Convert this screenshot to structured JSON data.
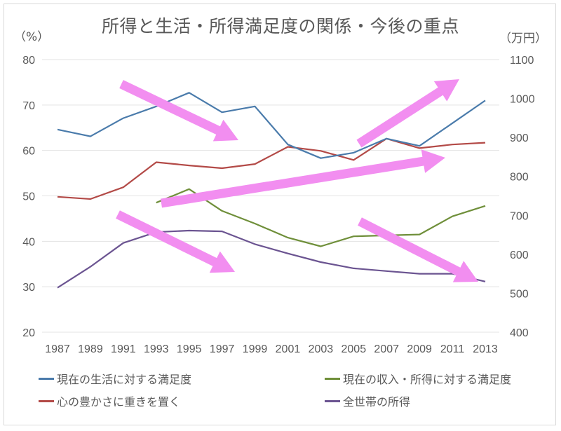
{
  "chart_data": {
    "type": "line",
    "title": "所得と生活・所得満足度の関係・今後の重点",
    "xlabel": "",
    "ylabel": "（%）",
    "y2label": "（万円）",
    "categories": [
      "1987",
      "1989",
      "1991",
      "1993",
      "1995",
      "1997",
      "1999",
      "2001",
      "2003",
      "2005",
      "2007",
      "2009",
      "2011",
      "2013"
    ],
    "ylim": [
      20,
      80
    ],
    "y_ticks": [
      "80",
      "70",
      "60",
      "50",
      "40",
      "30",
      "20"
    ],
    "y2lim": [
      400,
      1100
    ],
    "y2_ticks": [
      "1100",
      "1000",
      "900",
      "800",
      "700",
      "600",
      "500",
      "400"
    ],
    "grid": true,
    "legend_position": "bottom",
    "series": [
      {
        "name": "現在の生活に対する満足度",
        "axis": "left",
        "color": "#4a7bab",
        "values": [
          64.6,
          63.1,
          67.1,
          69.7,
          72.7,
          68.4,
          69.7,
          61.3,
          58.3,
          59.5,
          62.6,
          61.0,
          66.0,
          71.0
        ]
      },
      {
        "name": "現在の収入・所得に対する満足度",
        "axis": "left",
        "color": "#6f8f3a",
        "values": [
          null,
          null,
          null,
          48.5,
          51.5,
          46.7,
          43.9,
          40.8,
          38.9,
          41.1,
          41.3,
          41.5,
          45.5,
          47.8
        ]
      },
      {
        "name": "心の豊かさに重きを置く",
        "axis": "left",
        "color": "#b34a47",
        "values": [
          49.8,
          49.3,
          51.9,
          57.4,
          56.7,
          56.1,
          57.0,
          60.8,
          59.9,
          57.9,
          62.6,
          60.5,
          61.3,
          61.7
        ]
      },
      {
        "name": "全世帯の所得",
        "axis": "right",
        "color": "#6b5491",
        "values": [
          514,
          568,
          629,
          657,
          661,
          659,
          626,
          602,
          580,
          564,
          557,
          550,
          550,
          530
        ]
      }
    ],
    "annotations": [
      {
        "type": "arrow",
        "color": "#f28ef0",
        "from": [
          173,
          120
        ],
        "to": [
          340,
          200
        ],
        "direction": "down"
      },
      {
        "type": "arrow",
        "color": "#f28ef0",
        "from": [
          512,
          205
        ],
        "to": [
          655,
          113
        ],
        "direction": "up"
      },
      {
        "type": "arrow",
        "color": "#f28ef0",
        "from": [
          230,
          290
        ],
        "to": [
          635,
          225
        ],
        "direction": "up"
      },
      {
        "type": "arrow",
        "color": "#f28ef0",
        "from": [
          168,
          306
        ],
        "to": [
          335,
          388
        ],
        "direction": "down"
      },
      {
        "type": "arrow",
        "color": "#f28ef0",
        "from": [
          513,
          316
        ],
        "to": [
          682,
          402
        ],
        "direction": "down"
      }
    ]
  },
  "header": {
    "title": "所得と生活・所得満足度の関係・今後の重点",
    "left_unit": "（%）",
    "right_unit": "（万円）"
  },
  "legend": {
    "items": [
      {
        "label": "現在の生活に対する満足度",
        "color": "#4a7bab"
      },
      {
        "label": "現在の収入・所得に対する満足度",
        "color": "#6f8f3a"
      },
      {
        "label": "心の豊かさに重きを置く",
        "color": "#b34a47"
      },
      {
        "label": "全世帯の所得",
        "color": "#6b5491"
      }
    ]
  },
  "colors": {
    "arrow": "#f28ef0",
    "grid": "#e3e3e3",
    "text": "#595959"
  }
}
